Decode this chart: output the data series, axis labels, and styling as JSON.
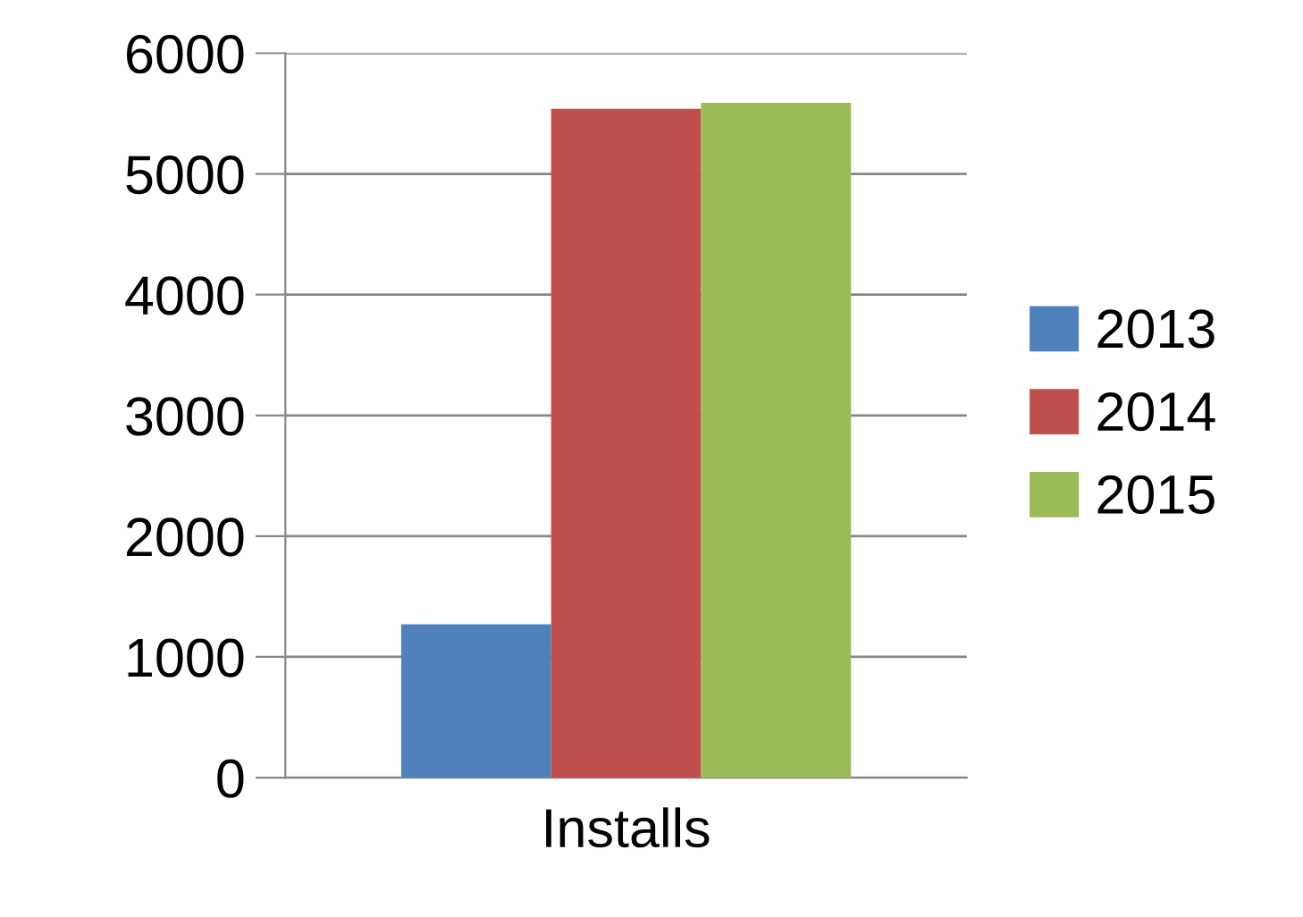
{
  "chart_data": {
    "type": "bar",
    "categories": [
      "Installs"
    ],
    "series": [
      {
        "name": "2013",
        "color": "#4f81bd",
        "values": [
          1270
        ]
      },
      {
        "name": "2014",
        "color": "#c0504d",
        "values": [
          5540
        ]
      },
      {
        "name": "2015",
        "color": "#9bbb59",
        "values": [
          5590
        ]
      }
    ],
    "ylim": [
      0,
      6000
    ],
    "yticks": [
      0,
      1000,
      2000,
      3000,
      4000,
      5000,
      6000
    ],
    "grid": "y",
    "legend": "right"
  }
}
